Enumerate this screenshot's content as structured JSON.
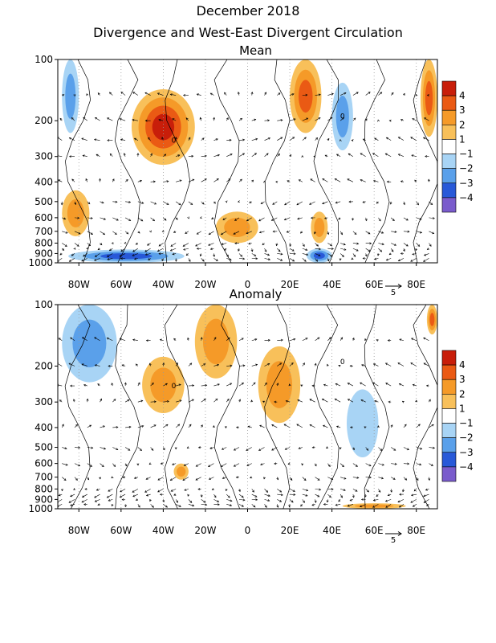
{
  "header": {
    "title_line1": "December 2018",
    "title_line2": "Divergence and West-East Divergent Circulation"
  },
  "chart_data": [
    {
      "type": "heatmap",
      "title": "Mean",
      "x_ticks": [
        "80W",
        "60W",
        "40W",
        "20W",
        "0",
        "20E",
        "40E",
        "60E",
        "80E"
      ],
      "x_tick_values": [
        -80,
        -60,
        -40,
        -20,
        0,
        20,
        40,
        60,
        80
      ],
      "xlim": [
        -90,
        90
      ],
      "y_ticks": [
        "100",
        "200",
        "300",
        "400",
        "500",
        "600",
        "700",
        "800",
        "900",
        "1000"
      ],
      "y_tick_values": [
        100,
        200,
        300,
        400,
        500,
        600,
        700,
        800,
        900,
        1000
      ],
      "ylim": [
        1000,
        100
      ],
      "y_scale": "log",
      "contour_label": "0",
      "vector_reference_label": "5",
      "colorbar": {
        "labels": [
          "4",
          "3",
          "2",
          "1",
          "−1",
          "−2",
          "−3",
          "−4"
        ],
        "colors": [
          "#c81e0a",
          "#ea5a14",
          "#f59a28",
          "#f8c05a",
          "#ffffff",
          "#a8d4f5",
          "#5aa0ea",
          "#2859d8",
          "#7a5ccc"
        ]
      },
      "positive_regions": [
        {
          "lon": [
            -55,
            -25
          ],
          "p": [
            140,
            330
          ],
          "level": 4
        },
        {
          "lon": [
            20,
            35
          ],
          "p": [
            100,
            230
          ],
          "level": 3
        },
        {
          "lon": [
            82,
            90
          ],
          "p": [
            100,
            240
          ],
          "level": 3
        },
        {
          "lon": [
            -88,
            -75
          ],
          "p": [
            440,
            740
          ],
          "level": 2
        },
        {
          "lon": [
            -15,
            5
          ],
          "p": [
            560,
            800
          ],
          "level": 2
        },
        {
          "lon": [
            30,
            38
          ],
          "p": [
            560,
            800
          ],
          "level": 2
        }
      ],
      "negative_regions": [
        {
          "lon": [
            -88,
            -80
          ],
          "p": [
            100,
            230
          ],
          "level": -2
        },
        {
          "lon": [
            40,
            50
          ],
          "p": [
            130,
            280
          ],
          "level": -2
        },
        {
          "lon": [
            -85,
            -30
          ],
          "p": [
            860,
            1000
          ],
          "level": -3
        },
        {
          "lon": [
            28,
            40
          ],
          "p": [
            850,
            1000
          ],
          "level": -3
        }
      ]
    },
    {
      "type": "heatmap",
      "title": "Anomaly",
      "x_ticks": [
        "80W",
        "60W",
        "40W",
        "20W",
        "0",
        "20E",
        "40E",
        "60E",
        "80E"
      ],
      "x_tick_values": [
        -80,
        -60,
        -40,
        -20,
        0,
        20,
        40,
        60,
        80
      ],
      "xlim": [
        -90,
        90
      ],
      "y_ticks": [
        "100",
        "200",
        "300",
        "400",
        "500",
        "600",
        "700",
        "800",
        "900",
        "1000"
      ],
      "y_tick_values": [
        100,
        200,
        300,
        400,
        500,
        600,
        700,
        800,
        900,
        1000
      ],
      "ylim": [
        1000,
        100
      ],
      "y_scale": "log",
      "contour_label": "0",
      "vector_reference_label": "5",
      "colorbar": {
        "labels": [
          "4",
          "3",
          "2",
          "1",
          "−1",
          "−2",
          "−3",
          "−4"
        ],
        "colors": [
          "#c81e0a",
          "#ea5a14",
          "#f59a28",
          "#f8c05a",
          "#ffffff",
          "#a8d4f5",
          "#5aa0ea",
          "#2859d8",
          "#7a5ccc"
        ]
      },
      "positive_regions": [
        {
          "lon": [
            -50,
            -30
          ],
          "p": [
            180,
            340
          ],
          "level": 2
        },
        {
          "lon": [
            -25,
            -5
          ],
          "p": [
            100,
            230
          ],
          "level": 2
        },
        {
          "lon": [
            5,
            25
          ],
          "p": [
            160,
            380
          ],
          "level": 2
        },
        {
          "lon": [
            -35,
            -28
          ],
          "p": [
            600,
            720
          ],
          "level": 2
        },
        {
          "lon": [
            45,
            75
          ],
          "p": [
            940,
            1000
          ],
          "level": 2
        },
        {
          "lon": [
            85,
            90
          ],
          "p": [
            100,
            140
          ],
          "level": 3
        }
      ],
      "negative_regions": [
        {
          "lon": [
            -88,
            -62
          ],
          "p": [
            100,
            240
          ],
          "level": -2
        },
        {
          "lon": [
            47,
            62
          ],
          "p": [
            260,
            560
          ],
          "level": -1
        }
      ]
    }
  ]
}
